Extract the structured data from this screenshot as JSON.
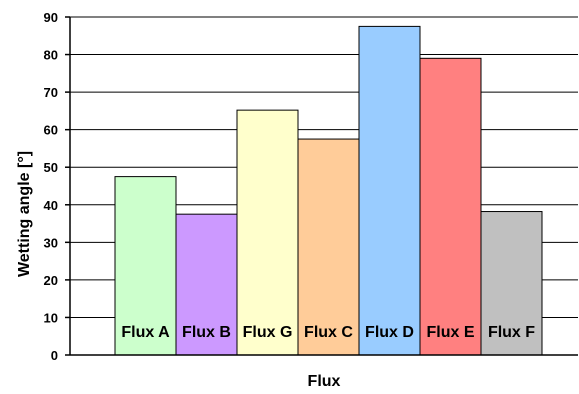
{
  "chart_data": {
    "type": "bar",
    "title": "",
    "xlabel": "Flux",
    "ylabel": "Wetting angle [°]",
    "ylim": [
      0,
      90
    ],
    "y_ticks": [
      0,
      10,
      20,
      30,
      40,
      50,
      60,
      70,
      80,
      90
    ],
    "grid": true,
    "legend": "none",
    "bar_labels_inside": true,
    "categories": [
      "Flux A",
      "Flux B",
      "Flux G",
      "Flux C",
      "Flux D",
      "Flux E",
      "Flux F"
    ],
    "values": [
      47.5,
      37.5,
      65.2,
      57.5,
      87.5,
      79.0,
      38.2
    ],
    "colors": [
      "#CCFFCC",
      "#CC99FF",
      "#FFFFCC",
      "#FFCC99",
      "#99CCFF",
      "#FF8080",
      "#C0C0C0"
    ]
  }
}
